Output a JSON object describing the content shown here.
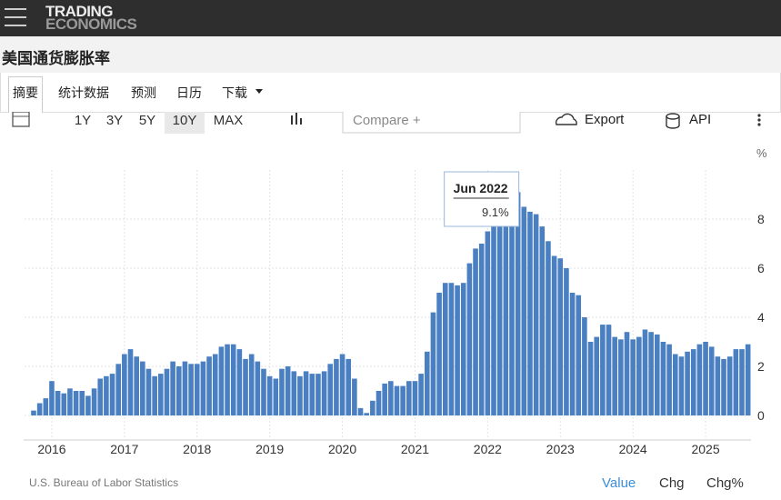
{
  "header": {
    "logo_top": "TRADING",
    "logo_bottom": "ECONOMICS"
  },
  "page_title": "美国通货膨胀率",
  "tabs": [
    "摘要",
    "统计数据",
    "预测",
    "日历",
    "下载"
  ],
  "toolbar": {
    "ranges": [
      "1Y",
      "3Y",
      "5Y",
      "10Y",
      "MAX"
    ],
    "active_range": "10Y",
    "compare": "Compare +",
    "export": "Export",
    "api": "API"
  },
  "chart_data": {
    "type": "bar",
    "unit": "%",
    "color": "#4a7fc1",
    "categories": [
      null,
      null,
      null,
      null,
      "2016",
      null,
      null,
      null,
      null,
      null,
      null,
      null,
      null,
      null,
      null,
      null,
      "2017",
      null,
      null,
      null,
      null,
      null,
      null,
      null,
      null,
      null,
      null,
      null,
      "2018",
      null,
      null,
      null,
      null,
      null,
      null,
      null,
      null,
      null,
      null,
      null,
      "2019",
      null,
      null,
      null,
      null,
      null,
      null,
      null,
      null,
      null,
      null,
      null,
      "2020",
      null,
      null,
      null,
      null,
      null,
      null,
      null,
      null,
      null,
      null,
      null,
      "2021",
      null,
      null,
      null,
      null,
      null,
      null,
      null,
      null,
      null,
      null,
      null,
      "2022",
      null,
      null,
      null,
      null,
      null,
      null,
      null,
      null,
      null,
      null,
      null,
      "2023",
      null,
      null,
      null,
      null,
      null,
      null,
      null,
      null,
      null,
      null,
      null,
      "2024",
      null,
      null,
      null,
      null,
      null,
      null,
      null,
      null,
      null,
      null,
      null,
      "2025",
      null,
      null,
      null,
      null,
      null,
      null,
      null
    ],
    "values": [
      0.0,
      0.2,
      0.5,
      0.7,
      1.4,
      1.0,
      0.9,
      1.1,
      1.0,
      1.0,
      0.8,
      1.1,
      1.5,
      1.6,
      1.7,
      2.1,
      2.5,
      2.7,
      2.4,
      2.2,
      1.9,
      1.6,
      1.7,
      1.9,
      2.2,
      2.0,
      2.2,
      2.1,
      2.1,
      2.2,
      2.4,
      2.5,
      2.8,
      2.9,
      2.9,
      2.7,
      2.3,
      2.5,
      2.2,
      1.9,
      1.6,
      1.5,
      1.9,
      2.0,
      1.8,
      1.6,
      1.8,
      1.7,
      1.7,
      1.8,
      2.1,
      2.3,
      2.5,
      2.3,
      1.5,
      0.3,
      0.1,
      0.6,
      1.0,
      1.3,
      1.4,
      1.2,
      1.2,
      1.4,
      1.4,
      1.7,
      2.6,
      4.2,
      5.0,
      5.4,
      5.4,
      5.3,
      5.4,
      6.2,
      6.8,
      7.0,
      7.5,
      7.9,
      8.5,
      8.3,
      8.6,
      9.1,
      8.5,
      8.3,
      8.2,
      7.7,
      7.1,
      6.5,
      6.4,
      6.0,
      5.0,
      4.9,
      4.0,
      3.0,
      3.2,
      3.7,
      3.7,
      3.2,
      3.1,
      3.4,
      3.1,
      3.2,
      3.5,
      3.4,
      3.3,
      3.0,
      2.9,
      2.5,
      2.4,
      2.6,
      2.7,
      2.9,
      3.0,
      2.8,
      2.4,
      2.3,
      2.4,
      2.7,
      2.7,
      2.9
    ],
    "ylim": [
      -1,
      10
    ],
    "yticks": [
      0,
      2,
      4,
      6,
      8
    ],
    "grid": true,
    "tooltip": {
      "index": 81,
      "date": "Jun 2022",
      "text": "9.1%"
    }
  },
  "footer": {
    "source": "U.S. Bureau of Labor Statistics",
    "views": [
      "Value",
      "Chg",
      "Chg%"
    ],
    "active_view": "Value"
  }
}
